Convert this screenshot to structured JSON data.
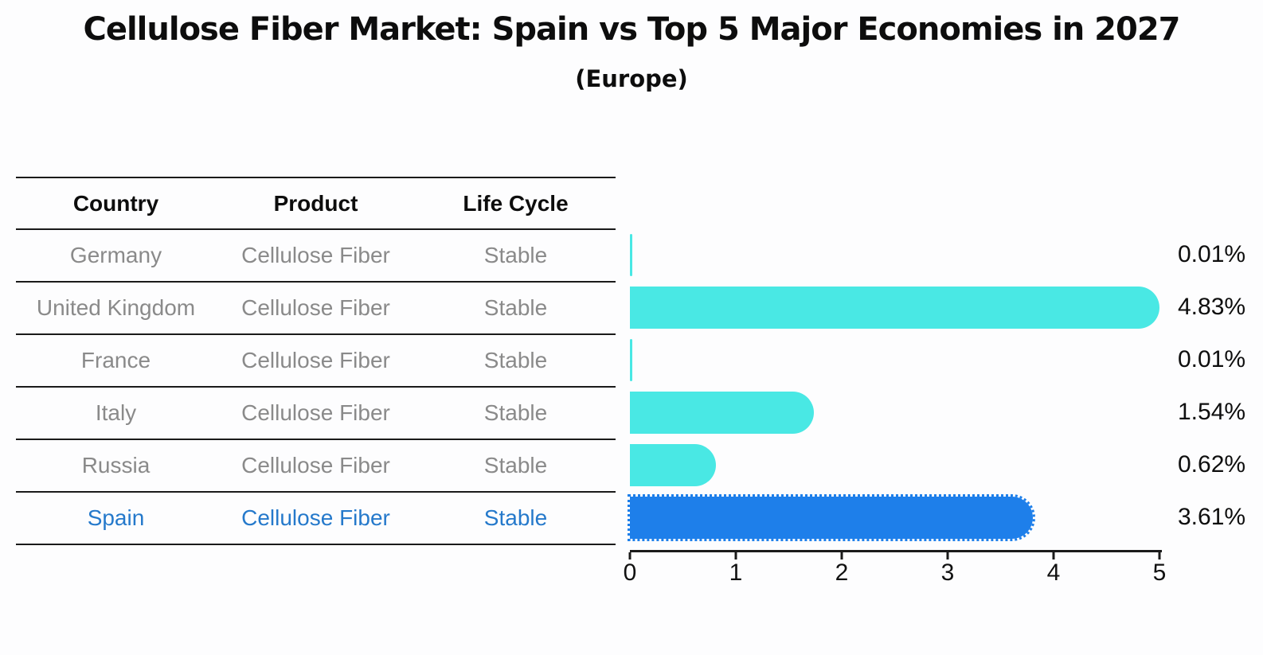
{
  "title": "Cellulose Fiber Market: Spain vs Top 5 Major Economies in 2027",
  "subtitle": "(Europe)",
  "table": {
    "headers": [
      "Country",
      "Product",
      "Life Cycle"
    ],
    "rows": [
      {
        "country": "Germany",
        "product": "Cellulose Fiber",
        "life_cycle": "Stable",
        "highlight": false
      },
      {
        "country": "United Kingdom",
        "product": "Cellulose Fiber",
        "life_cycle": "Stable",
        "highlight": false
      },
      {
        "country": "France",
        "product": "Cellulose Fiber",
        "life_cycle": "Stable",
        "highlight": false
      },
      {
        "country": "Italy",
        "product": "Cellulose Fiber",
        "life_cycle": "Stable",
        "highlight": false
      },
      {
        "country": "Russia",
        "product": "Cellulose Fiber",
        "life_cycle": "Stable",
        "highlight": false
      },
      {
        "country": "Spain",
        "product": "Cellulose Fiber",
        "life_cycle": "Stable",
        "highlight": true
      }
    ]
  },
  "chart_data": {
    "type": "bar",
    "orientation": "horizontal",
    "title": "Cellulose Fiber Market: Spain vs Top 5 Major Economies in 2027",
    "subtitle": "(Europe)",
    "categories": [
      "Germany",
      "United Kingdom",
      "France",
      "Italy",
      "Russia",
      "Spain"
    ],
    "values": [
      0.01,
      4.83,
      0.01,
      1.54,
      0.62,
      3.61
    ],
    "value_labels": [
      "0.01%",
      "4.83%",
      "0.01%",
      "1.54%",
      "0.62%",
      "3.61%"
    ],
    "xlabel": "",
    "ylabel": "",
    "xlim": [
      0,
      5
    ],
    "x_ticks": [
      0,
      1,
      2,
      3,
      4,
      5
    ],
    "grid": false,
    "legend": false,
    "bar_color": "#49e8e4",
    "highlight_color": "#1e7fea",
    "highlight_index": 5,
    "highlight_text_color": "#2579cb"
  }
}
